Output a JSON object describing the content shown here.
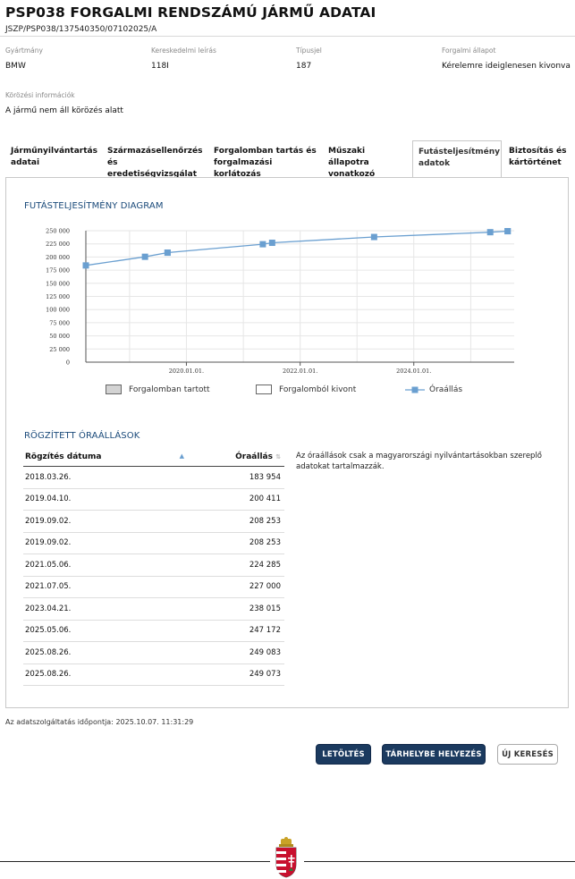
{
  "header": {
    "title": "PSP038 FORGALMI RENDSZÁMÚ JÁRMŰ ADATAI",
    "doc_id": "JSZP/PSP038/137540350/07102025/A"
  },
  "info": {
    "manufacturer_label": "Gyártmány",
    "manufacturer_value": "BMW",
    "model_label": "Kereskedelmi leírás",
    "model_value": "118I",
    "type_label": "Típusjel",
    "type_value": "187",
    "status_label": "Forgalmi állapot",
    "status_value": "Kérelemre ideiglenesen kivonva",
    "wanted_label": "Körözési információk",
    "wanted_value": "A jármű nem áll körözés alatt"
  },
  "tabs": [
    {
      "line1": "Járműnyilvántartás",
      "line2": "adatai"
    },
    {
      "line1": "Származásellenőrzés",
      "line2": "és eredetiségvizsgálat"
    },
    {
      "line1": "Forgalomban tartás és",
      "line2": "forgalmazási korlátozás"
    },
    {
      "line1": "Műszaki állapotra",
      "line2": "vonatkozó adatok"
    },
    {
      "line1": "Futásteljesítmény",
      "line2": "adatok"
    },
    {
      "line1": "Biztosítás és",
      "line2": "kártörténet"
    }
  ],
  "chart_section_title": "FUTÁSTELJESÍTMÉNY DIAGRAM",
  "legend": {
    "in_traffic": "Forgalomban tartott",
    "withdrawn": "Forgalomból kivont",
    "odometer": "Óraállás"
  },
  "chart_data": {
    "type": "line",
    "ylim": [
      0,
      250000
    ],
    "yticks": [
      "0",
      "25 000",
      "50 000",
      "75 000",
      "100 000",
      "125 000",
      "150 000",
      "175 000",
      "200 000",
      "225 000",
      "250 000"
    ],
    "xticks": [
      "2020.01.01.",
      "2022.01.01.",
      "2024.01.01."
    ],
    "x_range": [
      "2018.03.26.",
      "2025.10.07."
    ],
    "grid": true,
    "series": [
      {
        "name": "Óraállás",
        "points": [
          {
            "x": "2018.03.26.",
            "y": 183954
          },
          {
            "x": "2019.04.10.",
            "y": 200411
          },
          {
            "x": "2019.09.02.",
            "y": 208253
          },
          {
            "x": "2019.09.02.",
            "y": 208253
          },
          {
            "x": "2021.05.06.",
            "y": 224285
          },
          {
            "x": "2021.07.05.",
            "y": 227000
          },
          {
            "x": "2023.04.21.",
            "y": 238015
          },
          {
            "x": "2025.05.06.",
            "y": 247172
          },
          {
            "x": "2025.08.26.",
            "y": 249083
          },
          {
            "x": "2025.08.26.",
            "y": 249073
          }
        ]
      }
    ],
    "color": "#6a9fd0"
  },
  "table_section_title": "RÖGZÍTETT ÓRAÁLLÁSOK",
  "table": {
    "col_date": "Rögzítés dátuma",
    "col_value": "Óraállás",
    "rows": [
      [
        "2018.03.26.",
        "183 954"
      ],
      [
        "2019.04.10.",
        "200 411"
      ],
      [
        "2019.09.02.",
        "208 253"
      ],
      [
        "2019.09.02.",
        "208 253"
      ],
      [
        "2021.05.06.",
        "224 285"
      ],
      [
        "2021.07.05.",
        "227 000"
      ],
      [
        "2023.04.21.",
        "238 015"
      ],
      [
        "2025.05.06.",
        "247 172"
      ],
      [
        "2025.08.26.",
        "249 083"
      ],
      [
        "2025.08.26.",
        "249 073"
      ]
    ]
  },
  "note": "Az óraállások csak a magyarországi nyilvántartásokban szereplő adatokat tartalmazzák.",
  "footer": {
    "timestamp": "Az adatszolgáltatás időpontja: 2025.10.07. 11:31:29"
  },
  "buttons": {
    "download": "LETÖLTÉS",
    "store": "TÁRHELYBE HELYEZÉS",
    "new_search": "ÚJ KERESÉS"
  },
  "colors": {
    "primary_button": "#1b3a5f",
    "section_title": "#1a4a7a",
    "series": "#6a9fd0"
  },
  "icons": [
    "sort-asc-icon",
    "sort-both-icon",
    "hungarian-coat-of-arms-icon"
  ]
}
